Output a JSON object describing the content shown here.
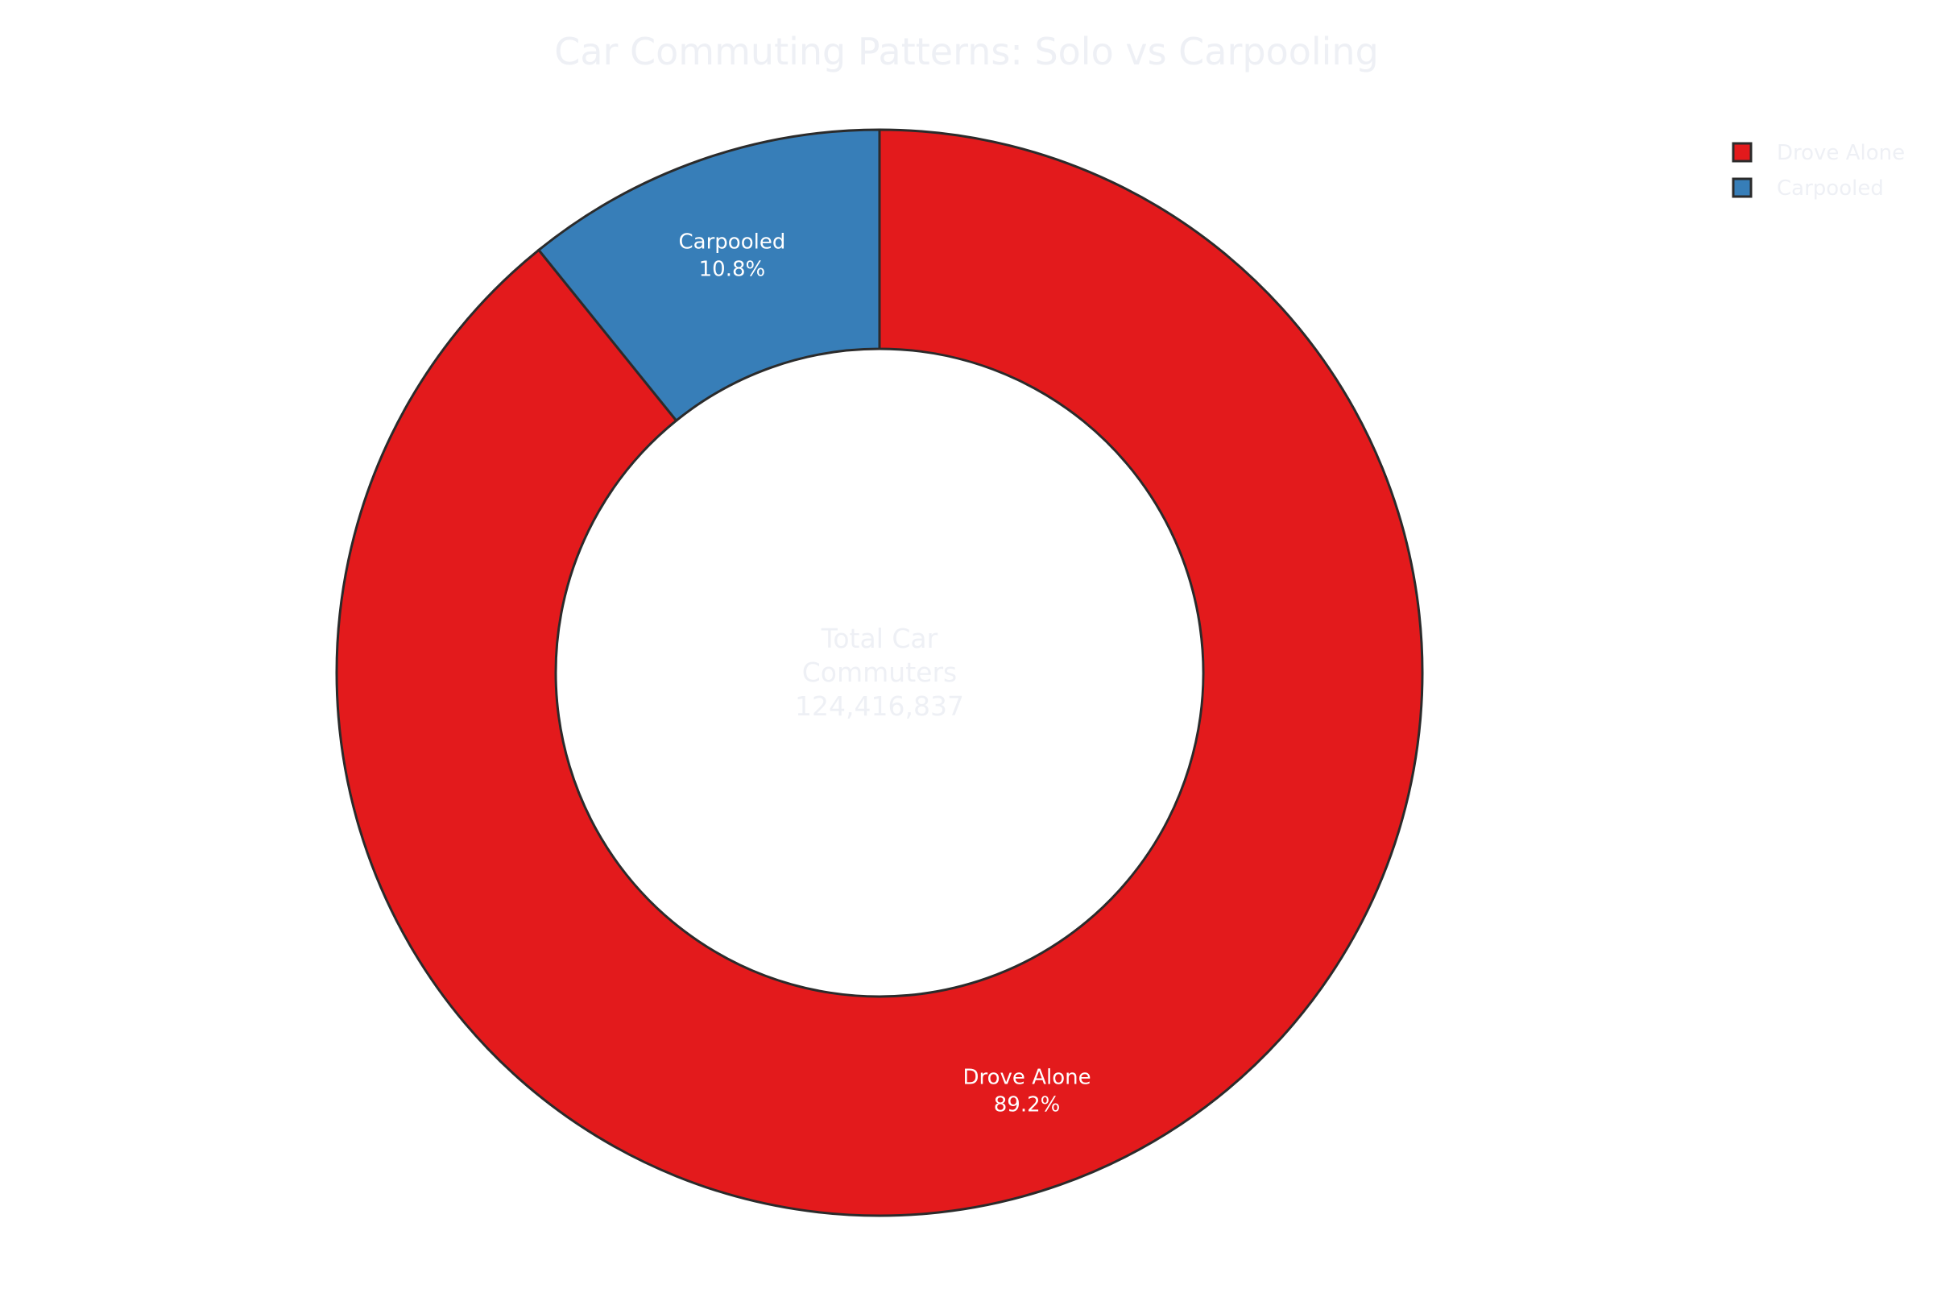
{
  "chart_data": {
    "type": "pie",
    "title": "Car Commuting Patterns: Solo vs Carpooling",
    "hole": true,
    "center_text": [
      "Total Car",
      "Commuters",
      "124,416,837"
    ],
    "legend_placement": "top-right",
    "series": [
      {
        "name": "Drove Alone",
        "value": 89.2,
        "label": "89.2%",
        "color": "#e31a1c"
      },
      {
        "name": "Carpooled",
        "value": 10.8,
        "label": "10.8%",
        "color": "#377eb8"
      }
    ]
  }
}
